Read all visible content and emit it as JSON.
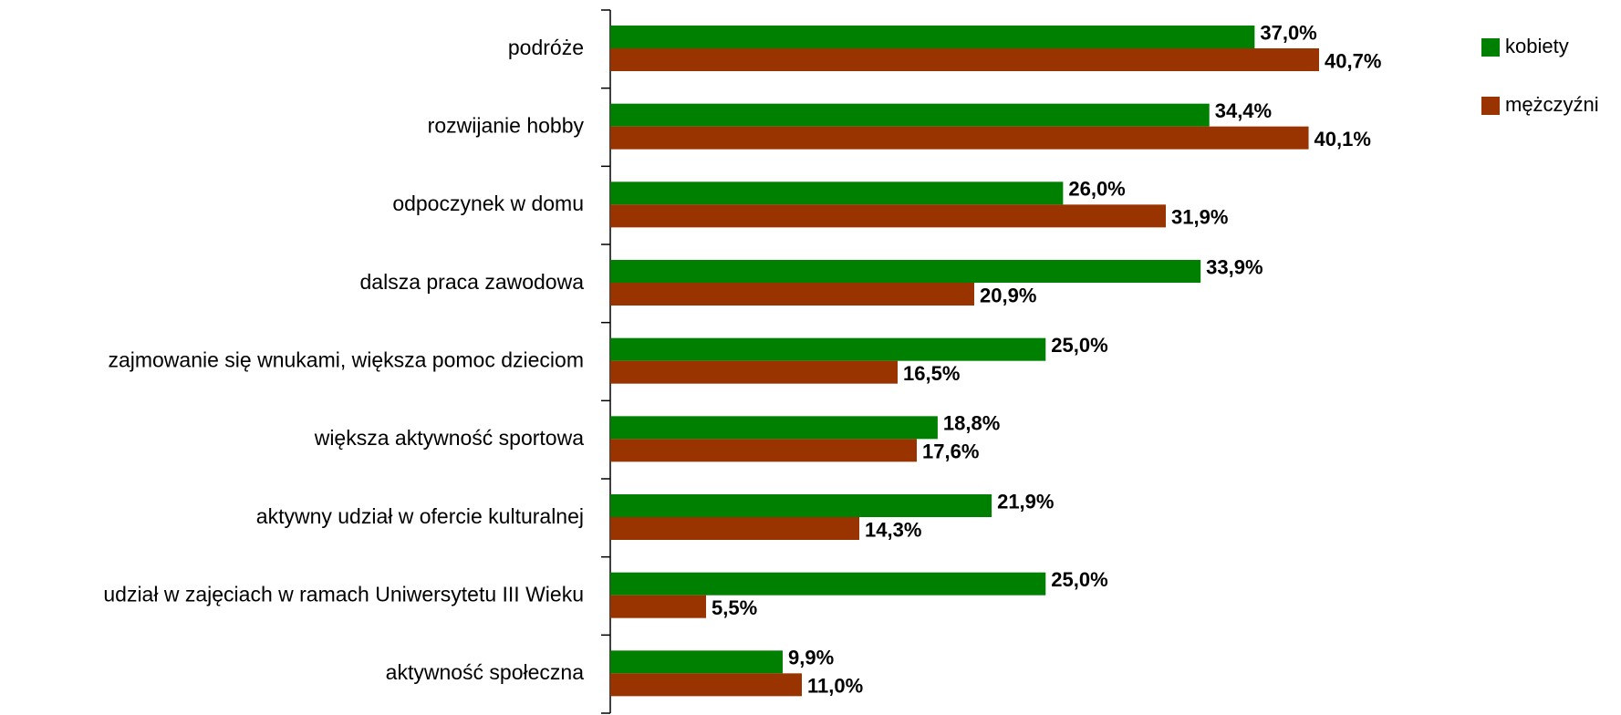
{
  "chart_data": {
    "type": "bar",
    "orientation": "horizontal",
    "categories": [
      "podróże",
      "rozwijanie hobby",
      "odpoczynek w domu",
      "dalsza praca zawodowa",
      "zajmowanie się wnukami, większa pomoc dzieciom",
      "większa aktywność sportowa",
      "aktywny udział w ofercie kulturalnej",
      "udział w zajęciach w ramach Uniwersytetu III Wieku",
      "aktywność społeczna"
    ],
    "series": [
      {
        "name": "kobiety",
        "color": "#008000",
        "values": [
          37.0,
          34.4,
          26.0,
          33.9,
          25.0,
          18.8,
          21.9,
          25.0,
          9.9
        ],
        "value_labels": [
          "37,0%",
          "34,4%",
          "26,0%",
          "33,9%",
          "25,0%",
          "18,8%",
          "21,9%",
          "25,0%",
          "9,9%"
        ]
      },
      {
        "name": "mężczyźni",
        "color": "#993300",
        "values": [
          40.7,
          40.1,
          31.9,
          20.9,
          16.5,
          17.6,
          14.3,
          5.5,
          11.0
        ],
        "value_labels": [
          "40,7%",
          "40,1%",
          "31,9%",
          "20,9%",
          "16,5%",
          "17,6%",
          "14,3%",
          "5,5%",
          "11,0%"
        ]
      }
    ],
    "legend": "right"
  }
}
